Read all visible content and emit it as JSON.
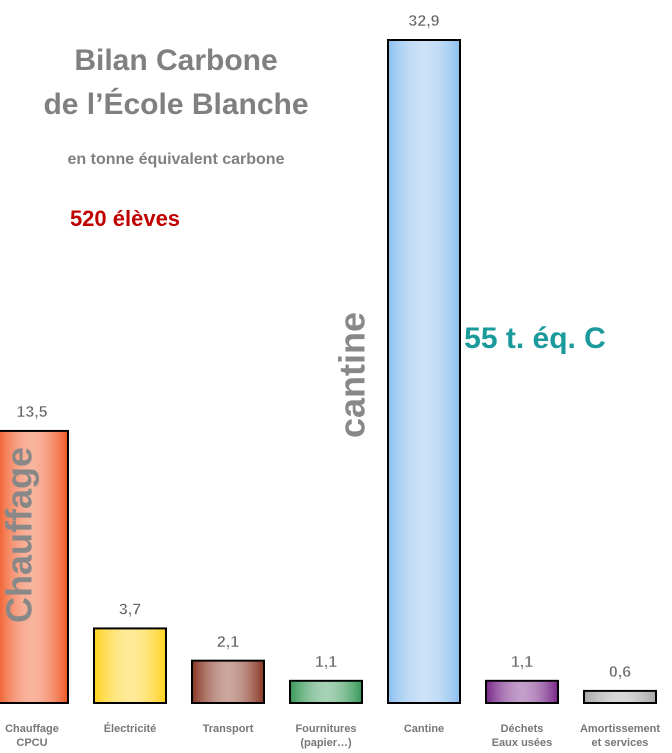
{
  "chart_data": {
    "type": "bar",
    "title": [
      "Bilan Carbone",
      "de l’École Blanche"
    ],
    "subtitle": "en tonne équivalent carbone",
    "annotations": [
      "520 élèves",
      "55 t. éq. C",
      "Chauffage",
      "cantine"
    ],
    "categories": [
      [
        "Chauffage",
        "CPCU"
      ],
      [
        "Électricité"
      ],
      [
        "Transport"
      ],
      [
        "Fournitures",
        "(papier…)"
      ],
      [
        "Cantine"
      ],
      [
        "Déchets",
        "Eaux usées"
      ],
      [
        "Amortissement",
        "et services"
      ]
    ],
    "values": [
      13.5,
      3.7,
      2.1,
      1.1,
      32.9,
      1.1,
      0.6
    ],
    "value_labels": [
      "13,5",
      "3,7",
      "2,1",
      "1,1",
      "32,9",
      "1,1",
      "0,6"
    ],
    "colors": [
      "#f05a28",
      "#ffd21e",
      "#8b3a28",
      "#3a9a5a",
      "#8ec0f0",
      "#7a2a8a",
      "#a8a8a8"
    ]
  }
}
